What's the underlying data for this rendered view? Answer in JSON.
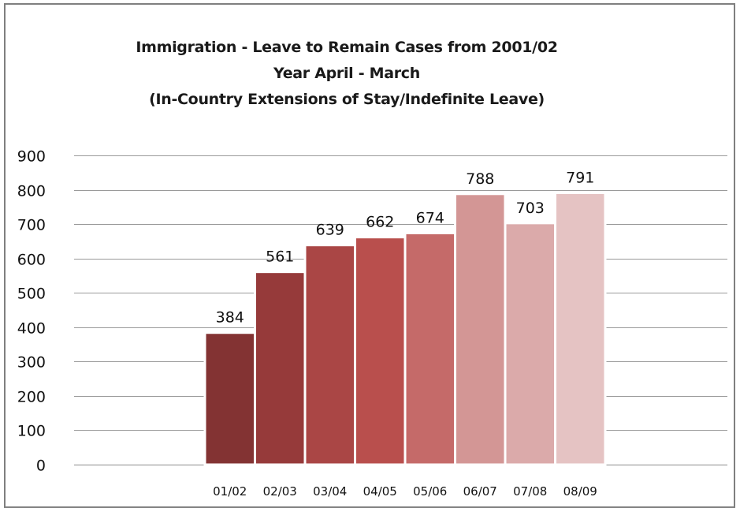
{
  "chart_data": {
    "type": "bar",
    "title_lines": [
      "Immigration - Leave to Remain Cases from 2001/02",
      "Year April - March",
      "(In-Country Extensions of Stay/Indefinite Leave)"
    ],
    "categories": [
      "01/02",
      "02/03",
      "03/04",
      "04/05",
      "05/06",
      "06/07",
      "07/08",
      "08/09"
    ],
    "values": [
      384,
      561,
      639,
      662,
      674,
      788,
      703,
      791
    ],
    "bar_colors": [
      "#833333",
      "#963a3a",
      "#aa4645",
      "#b94f4d",
      "#c56a69",
      "#d39695",
      "#dbaaaa",
      "#e5c3c3"
    ],
    "ylim": [
      0,
      900
    ],
    "y_ticks": [
      0,
      100,
      200,
      300,
      400,
      500,
      600,
      700,
      800,
      900
    ],
    "grid": true,
    "legend": false,
    "data_labels": true
  }
}
